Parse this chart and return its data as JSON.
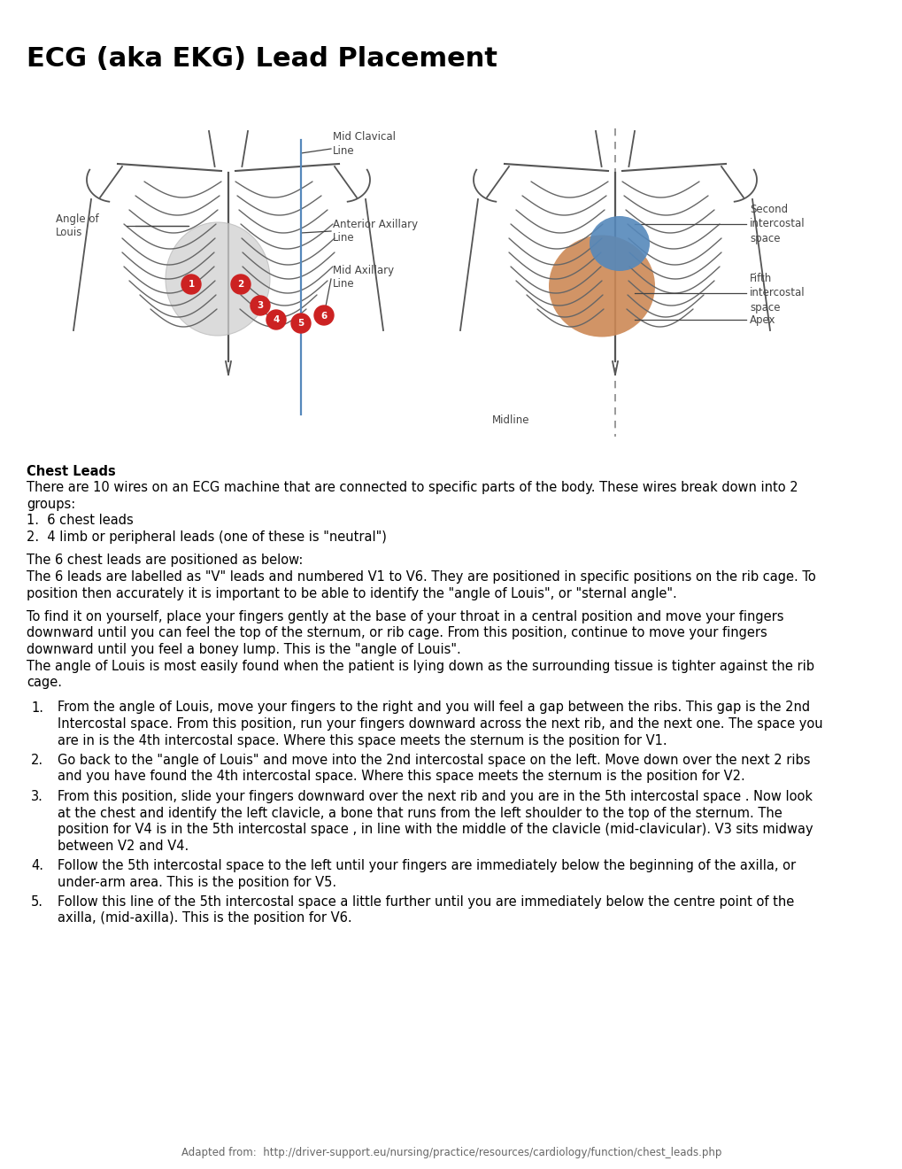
{
  "title": "ECG (aka EKG) Lead Placement",
  "title_fontsize": 22,
  "title_fontweight": "bold",
  "background_color": "#ffffff",
  "text_color": "#000000",
  "chest_leads_header": "Chest Leads",
  "footer": "Adapted from:  http://driver-support.eu/nursing/practice/resources/cardiology/function/chest_leads.php",
  "lead_color": "#cc2222",
  "annotation_color": "#444444",
  "rib_color": "#555555",
  "body_color": "#555555",
  "blue_line_color": "#5588bb",
  "heart_gray": "#cccccc",
  "heart_blue": "#5588bb",
  "heart_orange": "#cc8855",
  "paragraph1_lines": [
    "There are 10 wires on an ECG machine that are connected to specific parts of the body. These wires break down into 2",
    "groups:"
  ],
  "list1": [
    "6 chest leads",
    "4 limb or peripheral leads (one of these is \"neutral\")"
  ],
  "paragraph2_lines": [
    "The 6 chest leads are positioned as below:",
    "The 6 leads are labelled as \"V\" leads and numbered V1 to V6. They are positioned in specific positions on the rib cage. To",
    "position then accurately it is important to be able to identify the \"angle of Louis\", or \"sternal angle\"."
  ],
  "paragraph3_lines": [
    "To find it on yourself, place your fingers gently at the base of your throat in a central position and move your fingers",
    "downward until you can feel the top of the sternum, or rib cage. From this position, continue to move your fingers",
    "downward until you feel a boney lump. This is the \"angle of Louis\".",
    "The angle of Louis is most easily found when the patient is lying down as the surrounding tissue is tighter against the rib",
    "cage."
  ],
  "numbered_list": [
    [
      "From the angle of Louis, move your fingers to the right and you will feel a gap between the ribs. This gap is the 2nd",
      "Intercostal space. From this position, run your fingers downward across the next rib, and the next one. The space you",
      "are in is the 4th intercostal space. Where this space meets the sternum is the position for V1."
    ],
    [
      "Go back to the \"angle of Louis\" and move into the 2nd intercostal space on the left. Move down over the next 2 ribs",
      "and you have found the 4th intercostal space. Where this space meets the sternum is the position for V2."
    ],
    [
      "From this position, slide your fingers downward over the next rib and you are in the 5th intercostal space . Now look",
      "at the chest and identify the left clavicle, a bone that runs from the left shoulder to the top of the sternum. The",
      "position for V4 is in the 5th intercostal space , in line with the middle of the clavicle (mid-clavicular). V3 sits midway",
      "between V2 and V4."
    ],
    [
      "Follow the 5th intercostal space to the left until your fingers are immediately below the beginning of the axilla, or",
      "under-arm area. This is the position for V5."
    ],
    [
      "Follow this line of the 5th intercostal space a little further until you are immediately below the centre point of the",
      "axilla, (mid-axilla). This is the position for V6."
    ]
  ]
}
